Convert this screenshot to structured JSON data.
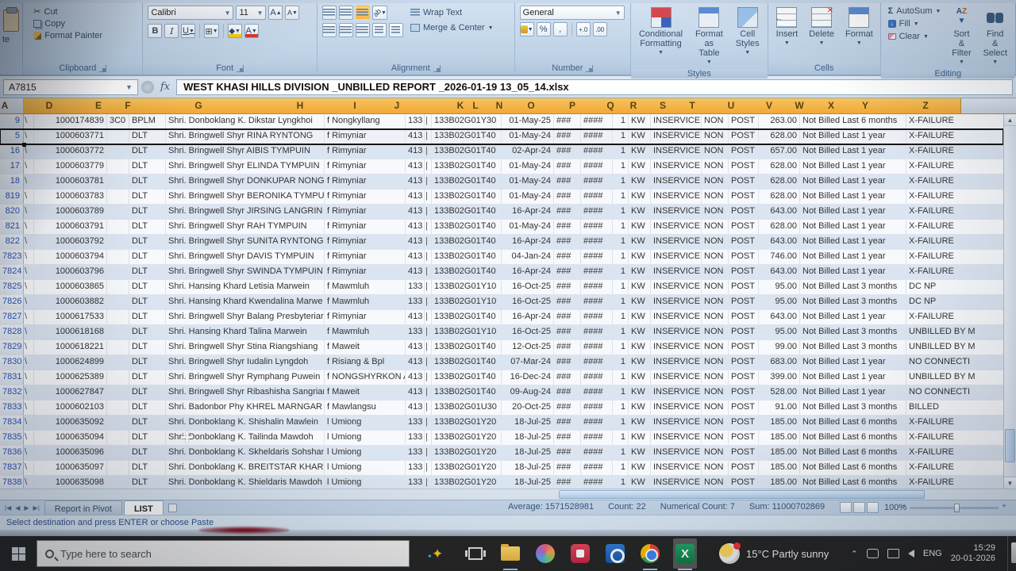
{
  "ribbon": {
    "paste_fragment": "te",
    "clipboard": {
      "label": "Clipboard",
      "cut": "Cut",
      "copy": "Copy",
      "format_painter": "Format Painter"
    },
    "font": {
      "label": "Font",
      "name": "Calibri",
      "size": "11",
      "bold": "B",
      "italic": "I",
      "underline": "U",
      "grow": "A",
      "shrink": "A",
      "color_letter": "A"
    },
    "alignment": {
      "label": "Alignment",
      "wrap": "Wrap Text",
      "merge": "Merge & Center"
    },
    "number": {
      "label": "Number",
      "format": "General",
      "percent": "%",
      "comma": ",",
      "inc_decimal": "+.0",
      "dec_decimal": ".00"
    },
    "styles": {
      "label": "Styles",
      "conditional": "Conditional Formatting",
      "format_table": "Format as Table",
      "cell_styles": "Cell Styles"
    },
    "cells": {
      "label": "Cells",
      "insert": "Insert",
      "delete": "Delete",
      "format": "Format"
    },
    "editing": {
      "label": "Editing",
      "sigma": "Σ",
      "autosum": "AutoSum",
      "fill": "Fill",
      "clear": "Clear",
      "sort": "Sort & Filter",
      "find": "Find & Select"
    }
  },
  "formula_bar": {
    "name_box": "A7815",
    "fx": "fx",
    "value": "WEST KHASI HILLS DIVISION _UNBILLED REPORT _2026-01-19 13_05_14.xlsx"
  },
  "grid": {
    "column_letters": [
      "A",
      "D",
      "E",
      "F",
      "G",
      "H",
      "I",
      "J",
      "K",
      "L",
      "N",
      "O",
      "P",
      "Q",
      "R",
      "S",
      "T",
      "U",
      "V",
      "W",
      "X",
      "Y",
      "Z"
    ],
    "mark_char": "\\",
    "row_defaults": {
      "e": "",
      "f": "DLT",
      "ll": "|",
      "p1": "###",
      "p2": "####",
      "s": "1",
      "t": "KW",
      "u": "INSERVICE",
      "v": "NON",
      "w": "POST"
    },
    "rows": [
      {
        "num": "9",
        "acct": "1000174839",
        "e": "3C0",
        "f": "BPLM",
        "name": "Shri. Donboklang K. Dikstar Lyngkhoi",
        "village": "f Nongkyllang",
        "kk": "133",
        "code": "133B02G01Y30",
        "date": "01-May-25",
        "amt": "263.00",
        "billed": "Not Billed Last 6 months",
        "status": "X-FAILURE"
      },
      {
        "num": "5",
        "selected": true,
        "acct": "1000603771",
        "name": "Shri. Bringwell Shyr RINA RYNTONG",
        "village": "f Rimyniar",
        "kk": "413",
        "code": "133B02G01T40",
        "date": "01-May-24",
        "amt": "628.00",
        "billed": "Not Billed Last 1 year",
        "status": "X-FAILURE"
      },
      {
        "num": "16",
        "acct": "1000603772",
        "name": "Shri. Bringwell Shyr AIBIS TYMPUIN",
        "village": "f Rimyniar",
        "kk": "413",
        "code": "133B02G01T40",
        "date": "02-Apr-24",
        "amt": "657.00",
        "billed": "Not Billed Last 1 year",
        "status": "X-FAILURE"
      },
      {
        "num": "17",
        "acct": "1000603779",
        "name": "Shri. Bringwell Shyr ELINDA TYMPUIN",
        "village": "f Rimyniar",
        "kk": "413",
        "code": "133B02G01T40",
        "date": "01-May-24",
        "amt": "628.00",
        "billed": "Not Billed Last 1 year",
        "status": "X-FAILURE"
      },
      {
        "num": "18",
        "acct": "1000603781",
        "name": "Shri. Bringwell Shyr DONKUPAR NONGS",
        "village": "f Rimyniar",
        "kk": "413",
        "code": "133B02G01T40",
        "date": "01-May-24",
        "amt": "628.00",
        "billed": "Not Billed Last 1 year",
        "status": "X-FAILURE"
      },
      {
        "num": "819",
        "acct": "1000603783",
        "name": "Shri. Bringwell Shyr BERONIKA TYMPUIN",
        "village": "f Rimyniar",
        "kk": "413",
        "code": "133B02G01T40",
        "date": "01-May-24",
        "amt": "628.00",
        "billed": "Not Billed Last 1 year",
        "status": "X-FAILURE"
      },
      {
        "num": "820",
        "acct": "1000603789",
        "name": "Shri. Bringwell Shyr JIRSING LANGRIN",
        "village": "f Rimyniar",
        "kk": "413",
        "code": "133B02G01T40",
        "date": "16-Apr-24",
        "amt": "643.00",
        "billed": "Not Billed Last 1 year",
        "status": "X-FAILURE"
      },
      {
        "num": "821",
        "acct": "1000603791",
        "name": "Shri. Bringwell Shyr RAH TYMPUIN",
        "village": "f Rimyniar",
        "kk": "413",
        "code": "133B02G01T40",
        "date": "01-May-24",
        "amt": "628.00",
        "billed": "Not Billed Last 1 year",
        "status": "X-FAILURE"
      },
      {
        "num": "822",
        "acct": "1000603792",
        "name": "Shri. Bringwell Shyr SUNITA RYNTONG",
        "village": "f Rimyniar",
        "kk": "413",
        "code": "133B02G01T40",
        "date": "16-Apr-24",
        "amt": "643.00",
        "billed": "Not Billed Last 1 year",
        "status": "X-FAILURE"
      },
      {
        "num": "7823",
        "acct": "1000603794",
        "name": "Shri. Bringwell Shyr DAVIS TYMPUIN",
        "village": "f Rimyniar",
        "kk": "413",
        "code": "133B02G01T40",
        "date": "04-Jan-24",
        "amt": "746.00",
        "billed": "Not Billed Last 1 year",
        "status": "X-FAILURE"
      },
      {
        "num": "7824",
        "acct": "1000603796",
        "name": "Shri. Bringwell Shyr SWINDA TYMPUIN",
        "village": "f Rimyniar",
        "kk": "413",
        "code": "133B02G01T40",
        "date": "16-Apr-24",
        "amt": "643.00",
        "billed": "Not Billed Last 1 year",
        "status": "X-FAILURE"
      },
      {
        "num": "7825",
        "acct": "1000603865",
        "name": "Shri. Hansing Khard Letisia Marwein",
        "village": "f Mawmluh",
        "kk": "133",
        "code": "133B02G01Y10",
        "date": "16-Oct-25",
        "amt": "95.00",
        "billed": "Not Billed Last 3 months",
        "status": "DC NP"
      },
      {
        "num": "7826",
        "acct": "1000603882",
        "name": "Shri. Hansing Khard Kwendalina Marwe",
        "village": "f Mawmluh",
        "kk": "133",
        "code": "133B02G01Y10",
        "date": "16-Oct-25",
        "amt": "95.00",
        "billed": "Not Billed Last 3 months",
        "status": "DC NP"
      },
      {
        "num": "7827",
        "acct": "1000617533",
        "name": "Shri. Bringwell Shyr Balang Presbyteriar",
        "village": "f Rimyniar",
        "kk": "413",
        "code": "133B02G01T40",
        "date": "16-Apr-24",
        "amt": "643.00",
        "billed": "Not Billed Last 1 year",
        "status": "X-FAILURE"
      },
      {
        "num": "7828",
        "acct": "1000618168",
        "name": "Shri. Hansing Khard Talina Marwein",
        "village": "f Mawmluh",
        "kk": "133",
        "code": "133B02G01Y10",
        "date": "16-Oct-25",
        "amt": "95.00",
        "billed": "Not Billed Last 3 months",
        "status": "UNBILLED BY M"
      },
      {
        "num": "7829",
        "acct": "1000618221",
        "name": "Shri. Bringwell Shyr Stina Riangshiang",
        "village": "f Maweit",
        "kk": "413",
        "code": "133B02G01T40",
        "date": "12-Oct-25",
        "amt": "99.00",
        "billed": "Not Billed Last 3 months",
        "status": "UNBILLED BY M"
      },
      {
        "num": "7830",
        "acct": "1000624899",
        "name": "Shri. Bringwell Shyr Iudalin Lyngdoh",
        "village": "f Risiang & Bpl",
        "kk": "413",
        "code": "133B02G01T40",
        "date": "07-Mar-24",
        "amt": "683.00",
        "billed": "Not Billed Last 1 year",
        "status": "NO CONNECTI"
      },
      {
        "num": "7831",
        "acct": "1000625389",
        "name": "Shri. Bringwell Shyr Rymphang Puwein",
        "village": "f NONGSHYRKON A",
        "kk": "413",
        "code": "133B02G01T40",
        "date": "16-Dec-24",
        "amt": "399.00",
        "billed": "Not Billed Last 1 year",
        "status": "UNBILLED BY M"
      },
      {
        "num": "7832",
        "acct": "1000627847",
        "name": "Shri. Bringwell Shyr Ribashisha Sangriar",
        "village": "f Maweit",
        "kk": "413",
        "code": "133B02G01T40",
        "date": "09-Aug-24",
        "amt": "528.00",
        "billed": "Not Billed Last 1 year",
        "status": "NO CONNECTI"
      },
      {
        "num": "7833",
        "acct": "1000602103",
        "name": "Shri. Badonbor Phy KHREL MARNGAR",
        "village": "f Mawlangsu",
        "kk": "413",
        "code": "133B02G01U30",
        "date": "20-Oct-25",
        "amt": "91.00",
        "billed": "Not Billed Last 3 months",
        "status": "BILLED"
      },
      {
        "num": "7834",
        "acct": "1000635092",
        "name": "Shri. Donboklang K. Shishalin Mawlein",
        "village": "l Umiong",
        "kk": "133",
        "code": "133B02G01Y20",
        "date": "18-Jul-25",
        "amt": "185.00",
        "billed": "Not Billed Last 6 months",
        "status": "X-FAILURE"
      },
      {
        "num": "7835",
        "acct": "1000635094",
        "name": "Shri. Donboklang K. Tailinda Mawdoh",
        "village": "l Umiong",
        "kk": "133",
        "code": "133B02G01Y20",
        "date": "18-Jul-25",
        "amt": "185.00",
        "billed": "Not Billed Last 6 months",
        "status": "X-FAILURE"
      },
      {
        "num": "7836",
        "acct": "1000635096",
        "name": "Shri. Donboklang K. Skheldaris Sohshan",
        "village": "l Umiong",
        "kk": "133",
        "code": "133B02G01Y20",
        "date": "18-Jul-25",
        "amt": "185.00",
        "billed": "Not Billed Last 6 months",
        "status": "X-FAILURE"
      },
      {
        "num": "7837",
        "acct": "1000635097",
        "name": "Shri. Donboklang K. BREITSTAR KHARBA",
        "village": "l Umiong",
        "kk": "133",
        "code": "133B02G01Y20",
        "date": "18-Jul-25",
        "amt": "185.00",
        "billed": "Not Billed Last 6 months",
        "status": "X-FAILURE"
      },
      {
        "num": "7838",
        "acct": "1000635098",
        "name": "Shri. Donboklang K. Shieldaris Mawdoh",
        "village": "l Umiong",
        "kk": "133",
        "code": "133B02G01Y20",
        "date": "18-Jul-25",
        "amt": "185.00",
        "billed": "Not Billed Last 6 months",
        "status": "X-FAILURE"
      }
    ]
  },
  "sheet_tabs": {
    "tab1": "Report in Pivot",
    "tab2": "LIST"
  },
  "status": {
    "message": "Select destination and press ENTER or choose Paste",
    "average": "Average: 1571528981",
    "count": "Count: 22",
    "numerical_count": "Numerical Count: 7",
    "sum": "Sum: 11000702869",
    "zoom": "100%"
  },
  "taskbar": {
    "search_placeholder": "Type here to search",
    "weather_temp": "15°C",
    "weather_desc": "Partly sunny",
    "language": "ENG",
    "time": "15:29",
    "date": "20-01-2026"
  },
  "colors": {
    "header_orange": "#f2a838",
    "band_blue": "#dbe5f1",
    "row_number_blue": "#2a52b8",
    "taskbar_dark": "#262626",
    "excel_green": "#107c41"
  }
}
